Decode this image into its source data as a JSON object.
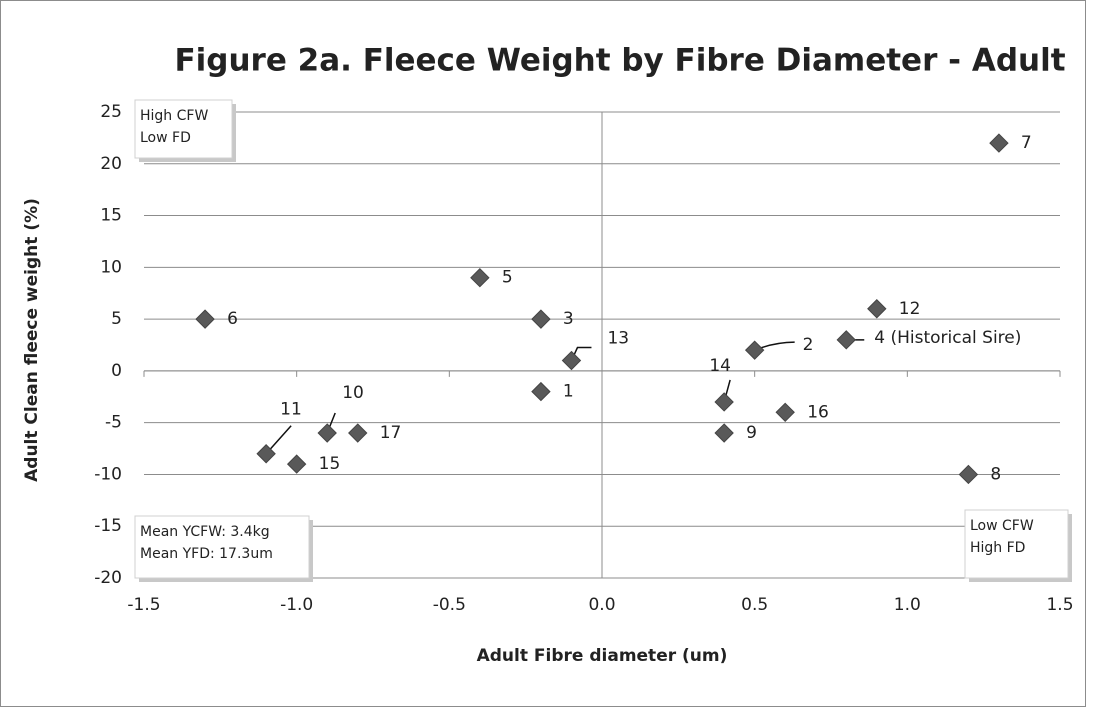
{
  "chart_data": {
    "type": "scatter",
    "title": "Figure 2a. Fleece Weight by Fibre Diameter - Adult",
    "x_label": "Adult Fibre diameter (um)",
    "y_label": "Adult Clean fleece weight (%)",
    "series": [
      {
        "color": "#595959",
        "x": [
          -0.2,
          0.5,
          -0.2,
          0.8,
          -0.4,
          -1.3,
          1.3,
          1.2,
          0.4,
          -0.9,
          -1.1,
          0.9,
          -0.1,
          0.4,
          -1.0,
          0.6,
          -0.8
        ],
        "values": [
          -2,
          2,
          5,
          3,
          9,
          5,
          22,
          -10,
          -6,
          -6,
          -8,
          6,
          1,
          -3,
          -9,
          -4,
          -6
        ],
        "point_labels": [
          "1",
          "2",
          "3",
          "4 (Historical Sire)",
          "5",
          "6",
          "7",
          "8",
          "9",
          "10",
          "11",
          "12",
          "13",
          "14",
          "15",
          "16",
          "17"
        ]
      }
    ],
    "xlim": [
      -1.5,
      1.5
    ],
    "xticks": [
      -1.5,
      {
        "value": -1,
        "label": "-1.0"
      },
      -0.5,
      {
        "value": 0,
        "label": "0.0"
      },
      0.5,
      {
        "value": 1,
        "label": "1.0"
      },
      1.5
    ],
    "ylim": [
      -20,
      25
    ],
    "yticks": [
      -20,
      -15,
      -10,
      -5,
      0,
      5,
      10,
      15,
      20,
      25
    ],
    "grid": true,
    "annotations": [
      {
        "lines": [
          "High CFW",
          "Low FD"
        ]
      },
      {
        "lines": [
          "Mean YCFW: 3.4kg",
          "Mean YFD: 17.3um"
        ]
      },
      {
        "lines": [
          "Low CFW",
          "High FD"
        ]
      }
    ]
  }
}
